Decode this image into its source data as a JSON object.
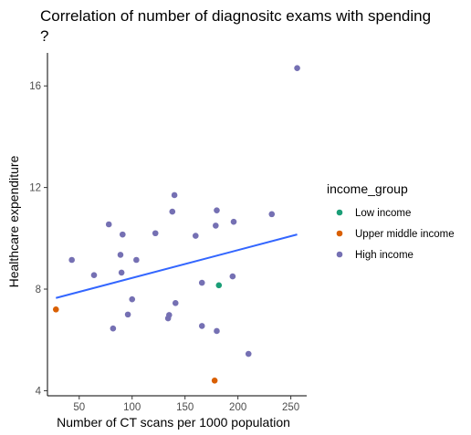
{
  "chart_data": {
    "type": "scatter",
    "title_line1": "Correlation of number of diagnositc exams with spending",
    "title_line2": "?",
    "xlabel": "Number of CT scans per 1000 population",
    "ylabel": "Healthcare expenditure",
    "xlim": [
      20,
      265
    ],
    "ylim": [
      3.8,
      17.3
    ],
    "x_ticks": [
      50,
      100,
      150,
      200,
      250
    ],
    "y_ticks": [
      4,
      8,
      12,
      16
    ],
    "grid": false,
    "legend": {
      "title": "income_group",
      "position": "right",
      "entries": [
        {
          "name": "Low income",
          "color": "#1b9e77"
        },
        {
          "name": "Upper middle income",
          "color": "#d95f02"
        },
        {
          "name": "High income",
          "color": "#7570b3"
        }
      ]
    },
    "trend_line": {
      "color": "#3366ff",
      "x": [
        28,
        256
      ],
      "y": [
        7.65,
        10.15
      ]
    },
    "series": [
      {
        "name": "Low income",
        "color": "#1b9e77",
        "points": [
          {
            "x": 182,
            "y": 8.15
          }
        ]
      },
      {
        "name": "Upper middle income",
        "color": "#d95f02",
        "points": [
          {
            "x": 28,
            "y": 7.2
          },
          {
            "x": 178,
            "y": 4.4
          }
        ]
      },
      {
        "name": "High income",
        "color": "#7570b3",
        "points": [
          {
            "x": 43,
            "y": 9.15
          },
          {
            "x": 64,
            "y": 8.55
          },
          {
            "x": 78,
            "y": 10.55
          },
          {
            "x": 82,
            "y": 6.45
          },
          {
            "x": 89,
            "y": 9.35
          },
          {
            "x": 90,
            "y": 8.65
          },
          {
            "x": 91,
            "y": 10.15
          },
          {
            "x": 96,
            "y": 7.0
          },
          {
            "x": 100,
            "y": 7.6
          },
          {
            "x": 104,
            "y": 9.15
          },
          {
            "x": 122,
            "y": 10.2
          },
          {
            "x": 134,
            "y": 6.85
          },
          {
            "x": 135,
            "y": 6.98
          },
          {
            "x": 138,
            "y": 11.05
          },
          {
            "x": 140,
            "y": 11.7
          },
          {
            "x": 141,
            "y": 7.45
          },
          {
            "x": 160,
            "y": 10.1
          },
          {
            "x": 166,
            "y": 8.25
          },
          {
            "x": 166,
            "y": 6.55
          },
          {
            "x": 179,
            "y": 10.5
          },
          {
            "x": 180,
            "y": 11.1
          },
          {
            "x": 180,
            "y": 6.35
          },
          {
            "x": 195,
            "y": 8.5
          },
          {
            "x": 196,
            "y": 10.65
          },
          {
            "x": 210,
            "y": 5.45
          },
          {
            "x": 232,
            "y": 10.95
          },
          {
            "x": 256,
            "y": 16.7
          }
        ]
      }
    ]
  }
}
